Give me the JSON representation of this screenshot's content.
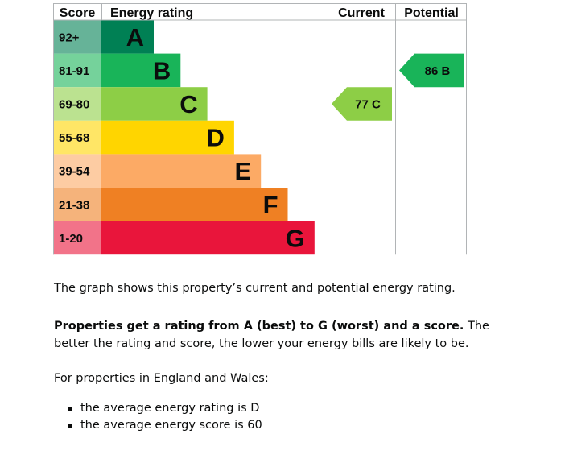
{
  "chart_data": {
    "type": "table",
    "headers": {
      "score": "Score",
      "rating": "Energy rating",
      "current": "Current",
      "potential": "Potential"
    },
    "bands": [
      {
        "score": "92+",
        "letter": "A",
        "band_color": "#008054",
        "score_bg": "#66b398"
      },
      {
        "score": "81-91",
        "letter": "B",
        "band_color": "#19b459",
        "score_bg": "#75d29b"
      },
      {
        "score": "69-80",
        "letter": "C",
        "band_color": "#8dce46",
        "score_bg": "#bbe290"
      },
      {
        "score": "55-68",
        "letter": "D",
        "band_color": "#ffd500",
        "score_bg": "#ffe666"
      },
      {
        "score": "39-54",
        "letter": "E",
        "band_color": "#fcaa65",
        "score_bg": "#fdcca3"
      },
      {
        "score": "21-38",
        "letter": "F",
        "band_color": "#ef8023",
        "score_bg": "#f5b37b"
      },
      {
        "score": "1-20",
        "letter": "G",
        "band_color": "#e9153b",
        "score_bg": "#f27389"
      }
    ],
    "current": {
      "score": 77,
      "letter": "C",
      "label": "77  C",
      "color": "#8dce46"
    },
    "potential": {
      "score": 86,
      "letter": "B",
      "label": "86  B",
      "color": "#19b459"
    }
  },
  "description": {
    "intro": "The graph shows this property’s current and potential energy rating.",
    "rating_bold": "Properties get a rating from A (best) to G (worst) and a score.",
    "rating_rest": " The better the rating and score, the lower your energy bills are likely to be.",
    "average_intro": "For properties in England and Wales:",
    "bullets": [
      "the average energy rating is D",
      "the average energy score is 60"
    ]
  }
}
